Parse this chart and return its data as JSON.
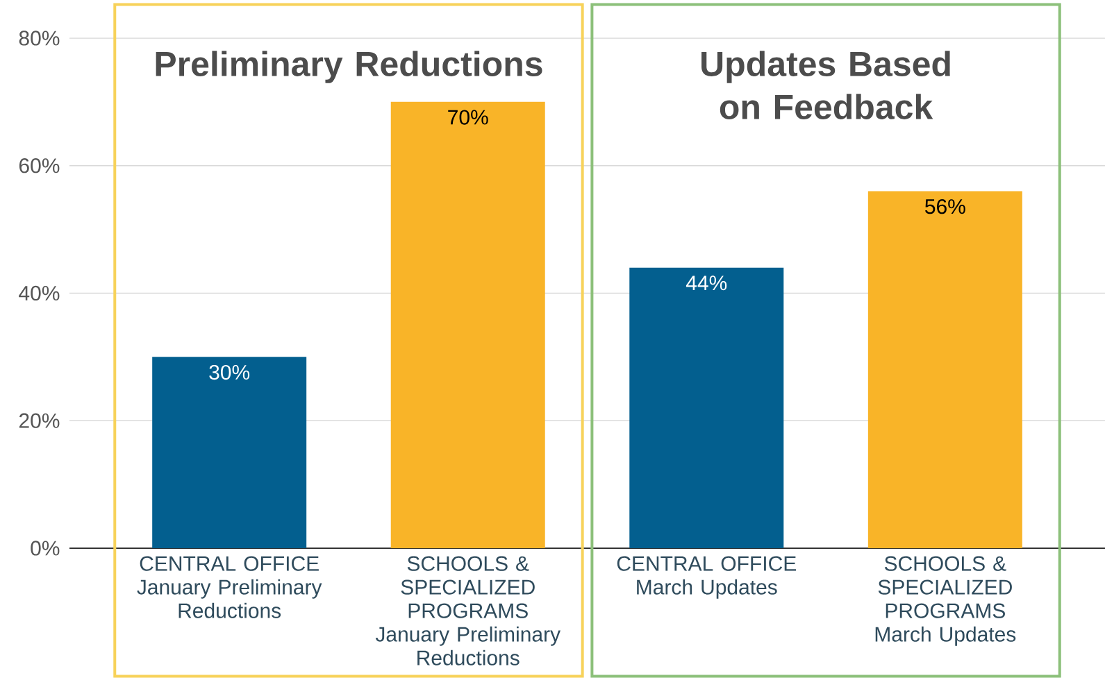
{
  "chart_data": {
    "type": "bar",
    "categories": [
      "CENTRAL OFFICE January Preliminary Reductions",
      "SCHOOLS & SPECIALIZED PROGRAMS January Preliminary Reductions",
      "CENTRAL OFFICE March Updates",
      "SCHOOLS & SPECIALIZED PROGRAMS March Updates"
    ],
    "values": [
      30,
      70,
      44,
      56
    ],
    "colors": [
      "#035f8f",
      "#f9b428",
      "#035f8f",
      "#f9b428"
    ],
    "value_labels": [
      "30%",
      "70%",
      "44%",
      "56%"
    ],
    "ylim": [
      0,
      80
    ],
    "yticks": [
      {
        "value": 0,
        "label": "0%"
      },
      {
        "value": 20,
        "label": "20%"
      },
      {
        "value": 40,
        "label": "40%"
      },
      {
        "value": 60,
        "label": "60%"
      },
      {
        "value": 80,
        "label": "80%"
      }
    ],
    "grid": "y",
    "annotations": [
      "Preliminary Reductions",
      "Updates Based on Feedback"
    ]
  }
}
